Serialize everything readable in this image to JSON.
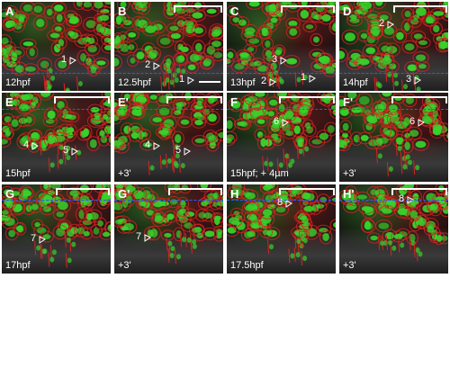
{
  "colors": {
    "nuclei": "#38d22a",
    "membrane": "#d8231f",
    "dashed_line": "#2f57ff",
    "annotation": "#ffffff"
  },
  "panels": [
    {
      "letter": "A",
      "time": "12hpf",
      "labels": [
        "1"
      ]
    },
    {
      "letter": "B",
      "time": "12.5hpf",
      "labels": [
        "2",
        "1"
      ]
    },
    {
      "letter": "C",
      "time": "13hpf",
      "labels": [
        "3",
        "2",
        "1"
      ]
    },
    {
      "letter": "D",
      "time": "14hpf",
      "labels": [
        "3",
        "2"
      ]
    },
    {
      "letter": "E",
      "time": "15hpf",
      "labels": [
        "4",
        "5"
      ]
    },
    {
      "letter": "E'",
      "time": "+3'",
      "labels": [
        "4",
        "5"
      ]
    },
    {
      "letter": "F",
      "time": "15hpf; + 4µm",
      "labels": [
        "6"
      ]
    },
    {
      "letter": "F'",
      "time": "+3'",
      "labels": [
        "6"
      ]
    },
    {
      "letter": "G",
      "time": "17hpf",
      "labels": [
        "7"
      ]
    },
    {
      "letter": "G'",
      "time": "+3'",
      "labels": [
        "7"
      ]
    },
    {
      "letter": "H",
      "time": "17.5hpf",
      "labels": [
        "8"
      ]
    },
    {
      "letter": "H'",
      "time": "+3'",
      "labels": [
        "8"
      ]
    }
  ]
}
